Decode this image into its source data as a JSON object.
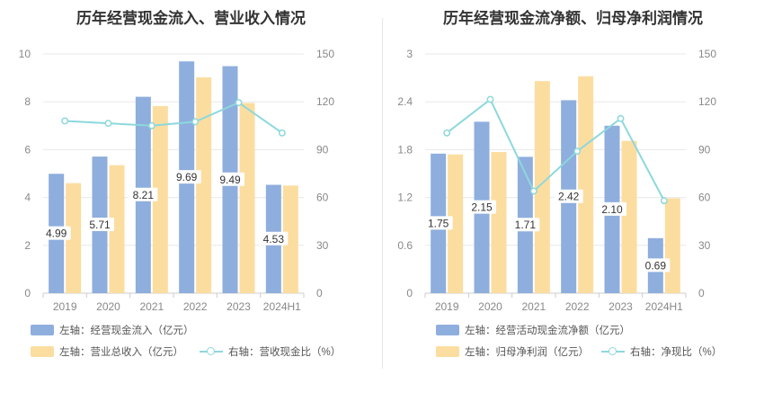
{
  "chart_data": [
    {
      "type": "bar+line",
      "title": "历年经营现金流入、营业收入情况",
      "categories": [
        "2019",
        "2020",
        "2021",
        "2022",
        "2023",
        "2024H1"
      ],
      "left_axis": {
        "ylim": [
          0,
          10
        ],
        "ticks": [
          "0",
          "2",
          "4",
          "6",
          "8",
          "10"
        ]
      },
      "right_axis": {
        "ylim": [
          0,
          150
        ],
        "ticks": [
          "0",
          "30",
          "60",
          "90",
          "120",
          "150"
        ]
      },
      "series": [
        {
          "name": "左轴：经营现金流入（亿元）",
          "type": "bar",
          "axis": "left",
          "color": "#8eaedd",
          "values": [
            4.99,
            5.71,
            8.21,
            9.69,
            9.49,
            4.53
          ],
          "labels": [
            "4.99",
            "5.71",
            "8.21",
            "9.69",
            "9.49",
            "4.53"
          ]
        },
        {
          "name": "左轴：营业总收入（亿元）",
          "type": "bar",
          "axis": "left",
          "color": "#fcdda0",
          "values": [
            4.6,
            5.35,
            7.82,
            9.02,
            7.95,
            4.5
          ]
        },
        {
          "name": "右轴：营收现金比（%）",
          "type": "line",
          "axis": "right",
          "color": "#8dd8dc",
          "values": [
            108,
            106.5,
            105,
            107.5,
            119.5,
            100.5
          ]
        }
      ]
    },
    {
      "type": "bar+line",
      "title": "历年经营现金流净额、归母净利润情况",
      "categories": [
        "2019",
        "2020",
        "2021",
        "2022",
        "2023",
        "2024H1"
      ],
      "left_axis": {
        "ylim": [
          0,
          3
        ],
        "ticks": [
          "0",
          "0.6",
          "1.2",
          "1.8",
          "2.4",
          "3"
        ]
      },
      "right_axis": {
        "ylim": [
          0,
          150
        ],
        "ticks": [
          "0",
          "30",
          "60",
          "90",
          "120",
          "150"
        ]
      },
      "series": [
        {
          "name": "左轴：经营活动现金流净额（亿元）",
          "type": "bar",
          "axis": "left",
          "color": "#8eaedd",
          "values": [
            1.75,
            2.15,
            1.71,
            2.42,
            2.1,
            0.69
          ],
          "labels": [
            "1.75",
            "2.15",
            "1.71",
            "2.42",
            "2.10",
            "0.69"
          ]
        },
        {
          "name": "左轴：归母净利润（亿元）",
          "type": "bar",
          "axis": "left",
          "color": "#fcdda0",
          "values": [
            1.74,
            1.77,
            2.66,
            2.72,
            1.91,
            1.19
          ]
        },
        {
          "name": "右轴：净现比（%）",
          "type": "line",
          "axis": "right",
          "color": "#8dd8dc",
          "values": [
            100.5,
            121.5,
            64,
            89,
            109.5,
            58
          ]
        }
      ]
    }
  ]
}
